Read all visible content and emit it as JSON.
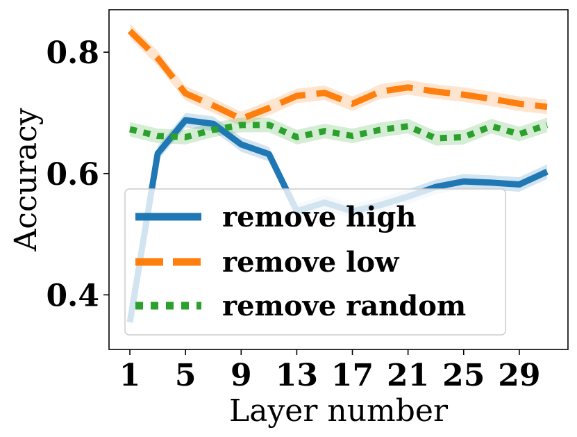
{
  "chart_data": {
    "type": "line",
    "xlabel": "Layer number",
    "ylabel": "Accuracy",
    "xlim": [
      -0.5,
      32.5
    ],
    "ylim": [
      0.31,
      0.87
    ],
    "xticks": [
      1,
      5,
      9,
      13,
      17,
      21,
      25,
      29
    ],
    "yticks": [
      0.4,
      0.6,
      0.8
    ],
    "ytick_labels": [
      "0.4",
      "0.6",
      "0.8"
    ],
    "grid": false,
    "legend_position": "lower-left",
    "x": [
      1,
      3,
      5,
      7,
      9,
      11,
      13,
      15,
      17,
      19,
      21,
      23,
      25,
      27,
      29,
      31
    ],
    "series": [
      {
        "name": "remove high",
        "color": "#1f77b4",
        "style": "solid",
        "values": [
          0.355,
          0.633,
          0.688,
          0.682,
          0.648,
          0.632,
          0.538,
          0.552,
          0.538,
          0.548,
          0.562,
          0.578,
          0.587,
          0.585,
          0.582,
          0.603
        ],
        "band": 0.012
      },
      {
        "name": "remove low",
        "color": "#ff7f0e",
        "style": "dashed",
        "values": [
          0.835,
          0.79,
          0.732,
          0.712,
          0.69,
          0.708,
          0.728,
          0.733,
          0.715,
          0.735,
          0.742,
          0.735,
          0.73,
          0.723,
          0.715,
          0.71
        ],
        "band": 0.012
      },
      {
        "name": "remove random",
        "color": "#2ca02c",
        "style": "dotted",
        "values": [
          0.673,
          0.662,
          0.66,
          0.672,
          0.68,
          0.68,
          0.66,
          0.67,
          0.662,
          0.672,
          0.678,
          0.658,
          0.66,
          0.678,
          0.665,
          0.68
        ],
        "band": 0.012
      }
    ]
  }
}
